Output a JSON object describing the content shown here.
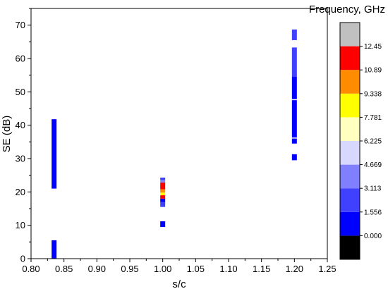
{
  "chart_data": {
    "type": "scatter",
    "xlabel": "s/c",
    "ylabel": "SE (dB)",
    "xlim": [
      0.8,
      1.25
    ],
    "ylim": [
      0,
      75
    ],
    "xticks": [
      "0.80",
      "0.85",
      "0.90",
      "0.95",
      "1.00",
      "1.05",
      "1.10",
      "1.15",
      "1.20",
      "1.25"
    ],
    "yticks": [
      "0",
      "10",
      "20",
      "30",
      "40",
      "50",
      "60",
      "70"
    ],
    "colorbar": {
      "title": "Frequency, GHz",
      "tick_labels": [
        "0.000",
        "1.556",
        "3.113",
        "4.669",
        "6.225",
        "7.781",
        "9.338",
        "10.89",
        "12.45"
      ],
      "bins": [
        {
          "color": "#000000"
        },
        {
          "color": "#0000ff"
        },
        {
          "color": "#4040ff"
        },
        {
          "color": "#8080ff"
        },
        {
          "color": "#d8d8ff"
        },
        {
          "color": "#ffffc0"
        },
        {
          "color": "#ffff00"
        },
        {
          "color": "#ff8c00"
        },
        {
          "color": "#ff0000"
        },
        {
          "color": "#c0c0c0"
        }
      ]
    },
    "series": [
      {
        "x": 0.835,
        "segments": [
          {
            "y0": 0.0,
            "y1": 5.5,
            "color": "#0000ff"
          },
          {
            "y0": 21.0,
            "y1": 41.8,
            "color": "#0000ff"
          }
        ]
      },
      {
        "x": 1.0,
        "segments": [
          {
            "y0": 9.5,
            "y1": 11.2,
            "color": "#0000ff"
          },
          {
            "y0": 15.5,
            "y1": 17.0,
            "color": "#4040ff"
          },
          {
            "y0": 17.0,
            "y1": 18.0,
            "color": "#0000ff"
          },
          {
            "y0": 18.0,
            "y1": 19.0,
            "color": "#ff0000"
          },
          {
            "y0": 19.0,
            "y1": 19.8,
            "color": "#ffff00"
          },
          {
            "y0": 19.8,
            "y1": 20.8,
            "color": "#ff8c00"
          },
          {
            "y0": 20.8,
            "y1": 22.8,
            "color": "#ff0000"
          },
          {
            "y0": 22.8,
            "y1": 23.6,
            "color": "#8080ff"
          },
          {
            "y0": 23.6,
            "y1": 24.3,
            "color": "#4040ff"
          }
        ]
      },
      {
        "x": 1.2,
        "segments": [
          {
            "y0": 29.5,
            "y1": 31.3,
            "color": "#0000ff"
          },
          {
            "y0": 34.5,
            "y1": 36.0,
            "color": "#0000ff"
          },
          {
            "y0": 36.3,
            "y1": 47.5,
            "color": "#0000ff"
          },
          {
            "y0": 47.8,
            "y1": 54.5,
            "color": "#0000ff"
          },
          {
            "y0": 54.5,
            "y1": 63.3,
            "color": "#4040ff"
          },
          {
            "y0": 65.5,
            "y1": 68.7,
            "color": "#4040ff"
          }
        ]
      }
    ]
  }
}
